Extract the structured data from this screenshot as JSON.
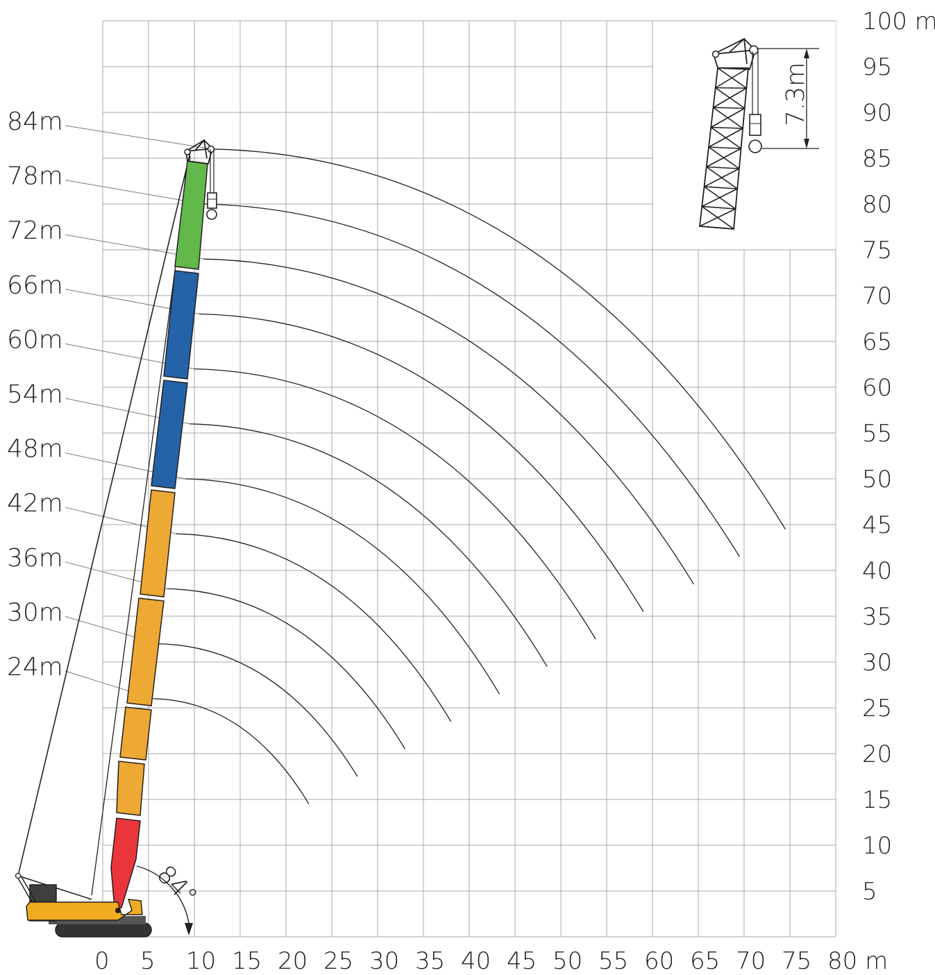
{
  "chart_data": {
    "type": "line",
    "x_axis": {
      "ticks": [
        "0",
        "5",
        "10",
        "15",
        "20",
        "25",
        "30",
        "35",
        "40",
        "45",
        "50",
        "55",
        "60",
        "65",
        "70",
        "75",
        "80 m"
      ],
      "range": [
        0,
        80
      ]
    },
    "y_axis": {
      "ticks": [
        "5",
        "10",
        "15",
        "20",
        "25",
        "30",
        "35",
        "40",
        "45",
        "50",
        "55",
        "60",
        "65",
        "70",
        "75",
        "80",
        "85",
        "90",
        "95",
        "100 m"
      ],
      "range": [
        0,
        100
      ]
    },
    "grid": true,
    "series": [
      {
        "name": "84m",
        "boom_length": 84,
        "tip": [
          12,
          86
        ],
        "end": [
          74.5,
          44.5
        ]
      },
      {
        "name": "78m",
        "boom_length": 78,
        "tip": [
          11,
          80
        ],
        "end": [
          69.5,
          41.5
        ]
      },
      {
        "name": "72m",
        "boom_length": 72,
        "tip": [
          11,
          74
        ],
        "end": [
          64.5,
          38.5
        ]
      },
      {
        "name": "66m",
        "boom_length": 66,
        "tip": [
          10.5,
          68
        ],
        "end": [
          59,
          35.5
        ]
      },
      {
        "name": "60m",
        "boom_length": 60,
        "tip": [
          10,
          62
        ],
        "end": [
          53.8,
          32.5
        ]
      },
      {
        "name": "54m",
        "boom_length": 54,
        "tip": [
          9.5,
          56
        ],
        "end": [
          48.5,
          29.5
        ]
      },
      {
        "name": "48m",
        "boom_length": 48,
        "tip": [
          9,
          50
        ],
        "end": [
          43.3,
          26.5
        ]
      },
      {
        "name": "42m",
        "boom_length": 42,
        "tip": [
          8,
          44
        ],
        "end": [
          38,
          23.5
        ]
      },
      {
        "name": "36m",
        "boom_length": 36,
        "tip": [
          7,
          38
        ],
        "end": [
          33,
          20.5
        ]
      },
      {
        "name": "30m",
        "boom_length": 30,
        "tip": [
          6,
          32
        ],
        "end": [
          27.8,
          17.5
        ]
      },
      {
        "name": "24m",
        "boom_length": 24,
        "tip": [
          5.5,
          26
        ],
        "end": [
          22.5,
          14.5
        ]
      }
    ],
    "annotations": [
      {
        "text": "84°"
      },
      {
        "text": "7.3m"
      }
    ]
  },
  "colors": {
    "grid": "#a8a8a8",
    "tip_section": "#62b84a",
    "insert_blue": "#2463a8",
    "insert_orange": "#eea834",
    "base_section": "#e8363a",
    "crane_body": "#f0ac1e",
    "counterweight": "#3f3f3f",
    "tracks": "#333333"
  }
}
